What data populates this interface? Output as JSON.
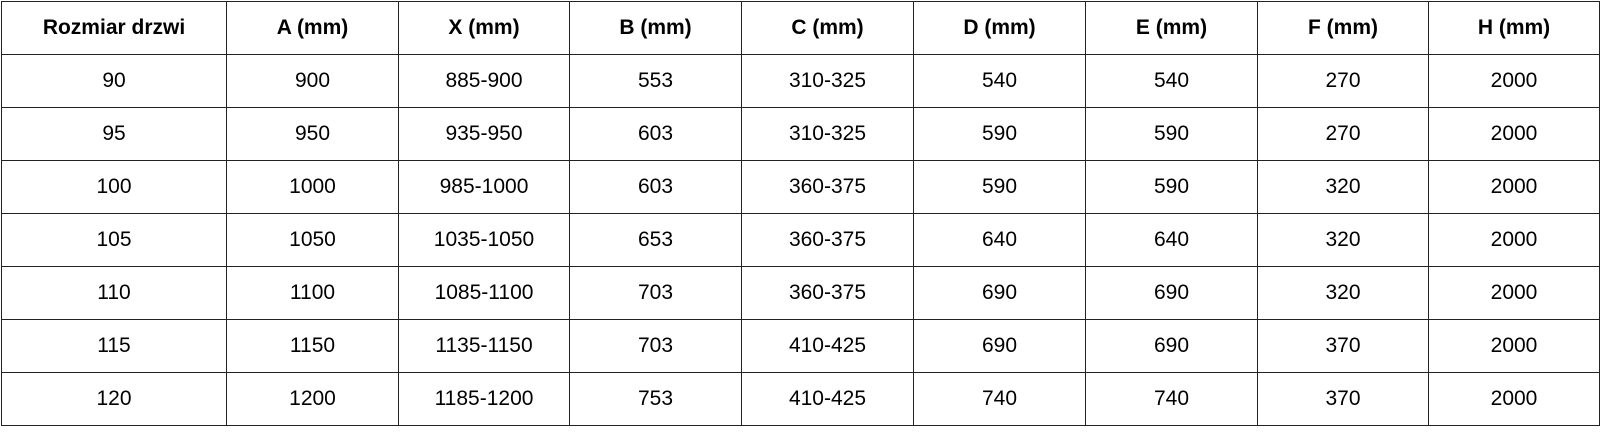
{
  "table": {
    "headers": [
      "Rozmiar drzwi",
      "A (mm)",
      "X (mm)",
      "B (mm)",
      "C (mm)",
      "D (mm)",
      "E (mm)",
      "F (mm)",
      "H (mm)"
    ],
    "rows": [
      [
        "90",
        "900",
        "885-900",
        "553",
        "310-325",
        "540",
        "540",
        "270",
        "2000"
      ],
      [
        "95",
        "950",
        "935-950",
        "603",
        "310-325",
        "590",
        "590",
        "270",
        "2000"
      ],
      [
        "100",
        "1000",
        "985-1000",
        "603",
        "360-375",
        "590",
        "590",
        "320",
        "2000"
      ],
      [
        "105",
        "1050",
        "1035-1050",
        "653",
        "360-375",
        "640",
        "640",
        "320",
        "2000"
      ],
      [
        "110",
        "1100",
        "1085-1100",
        "703",
        "360-375",
        "690",
        "690",
        "320",
        "2000"
      ],
      [
        "115",
        "1150",
        "1135-1150",
        "703",
        "410-425",
        "690",
        "690",
        "370",
        "2000"
      ],
      [
        "120",
        "1200",
        "1185-1200",
        "753",
        "410-425",
        "740",
        "740",
        "370",
        "2000"
      ]
    ]
  }
}
